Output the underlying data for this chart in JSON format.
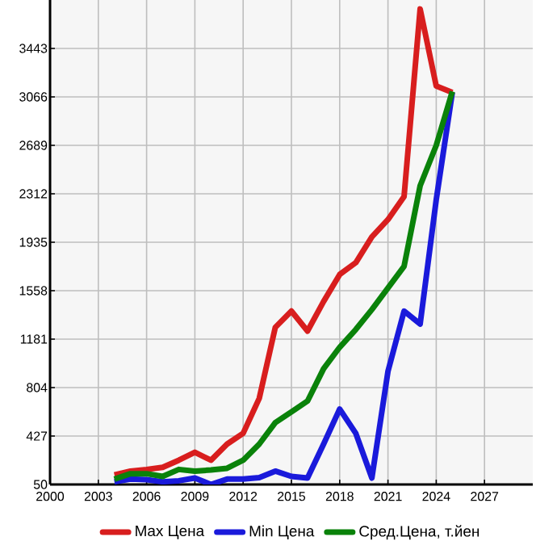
{
  "chart_data": {
    "type": "line",
    "x": [
      2004,
      2005,
      2006,
      2007,
      2008,
      2009,
      2010,
      2011,
      2012,
      2013,
      2014,
      2015,
      2016,
      2017,
      2018,
      2019,
      2020,
      2021,
      2022,
      2023,
      2024,
      2025
    ],
    "series": [
      {
        "name": "Max Цена",
        "color": "#d81e1e",
        "values": [
          125,
          154,
          167,
          184,
          239,
          301,
          239,
          364,
          448,
          720,
          1273,
          1399,
          1244,
          1474,
          1684,
          1776,
          1977,
          2111,
          2290,
          3750,
          3150,
          3100
        ]
      },
      {
        "name": "Min Цена",
        "color": "#1a1adb",
        "values": [
          71,
          92,
          88,
          71,
          79,
          100,
          50,
          92,
          92,
          104,
          154,
          113,
          100,
          364,
          637,
          448,
          100,
          930,
          1399,
          1299,
          2266,
          3100
        ]
      },
      {
        "name": "Сред.Цена, т.йен",
        "color": "#0a820a",
        "values": [
          92,
          134,
          134,
          113,
          167,
          154,
          163,
          176,
          239,
          364,
          531,
          615,
          699,
          951,
          1118,
          1256,
          1411,
          1579,
          1747,
          2375,
          2689,
          3108
        ]
      }
    ],
    "xlim": [
      2000,
      2030
    ],
    "ylim": [
      50,
      3820
    ],
    "xticks": [
      2000,
      2003,
      2006,
      2009,
      2012,
      2015,
      2018,
      2021,
      2024,
      2027
    ],
    "yticks": [
      50,
      427,
      804,
      1181,
      1558,
      1935,
      2312,
      2689,
      3066,
      3443
    ],
    "grid": true,
    "legend": "bottom",
    "line_style": "solid",
    "marker": "none"
  }
}
